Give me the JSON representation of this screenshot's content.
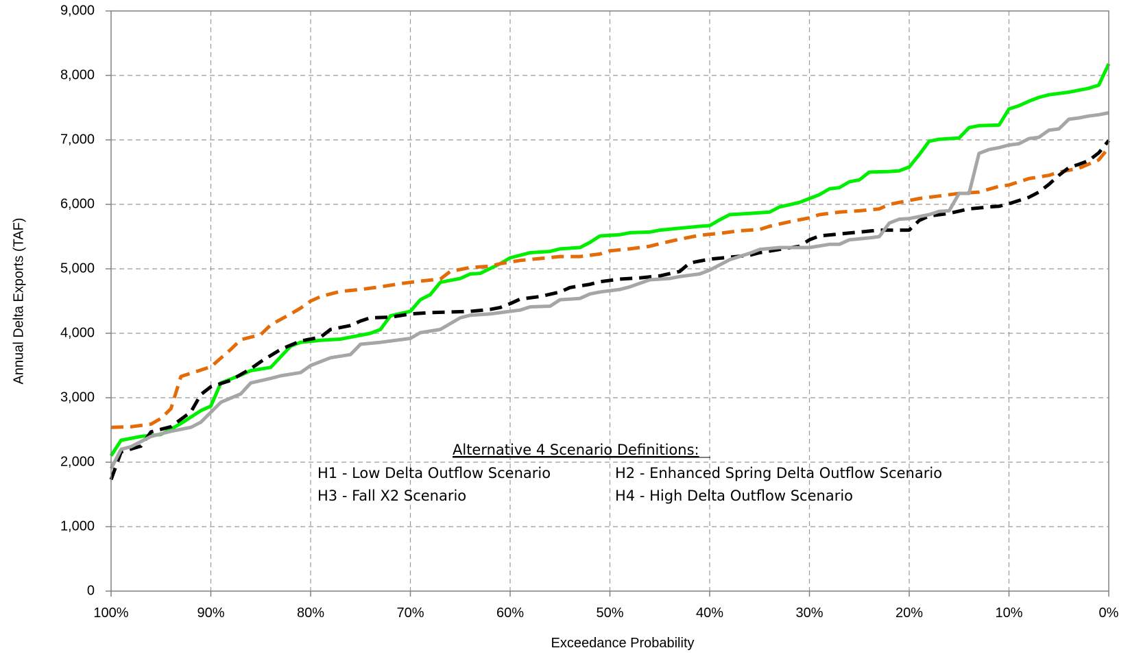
{
  "chart_data": {
    "type": "line",
    "title": "",
    "xlabel": "Exceedance Probability",
    "ylabel": "Annual Delta Exports (TAF)",
    "x_axis_reversed": true,
    "xlim": [
      100,
      0
    ],
    "ylim": [
      0,
      9000
    ],
    "x_ticks": [
      100,
      90,
      80,
      70,
      60,
      50,
      40,
      30,
      20,
      10,
      0
    ],
    "x_tick_labels": [
      "100%",
      "90%",
      "80%",
      "70%",
      "60%",
      "50%",
      "40%",
      "30%",
      "20%",
      "10%",
      "0%"
    ],
    "y_ticks": [
      0,
      1000,
      2000,
      3000,
      4000,
      5000,
      6000,
      7000,
      8000,
      9000
    ],
    "y_tick_labels": [
      "0",
      "1,000",
      "2,000",
      "3,000",
      "4,000",
      "5,000",
      "6,000",
      "7,000",
      "8,000",
      "9,000"
    ],
    "grid": true,
    "grid_style": "dashed",
    "annotation": {
      "title": "Alternative 4 Scenario Definitions:",
      "h1": "H1 - Low Delta Outflow Scenario",
      "h2": "H2 - Enhanced Spring Delta Outflow Scenario",
      "h3": "H3 - Fall X2 Scenario",
      "h4": "H4 - High Delta Outflow Scenario"
    },
    "series": [
      {
        "color": "#00ee00",
        "dash": "solid",
        "points": [
          [
            100,
            2100
          ],
          [
            99,
            2340
          ],
          [
            97,
            2400
          ],
          [
            95,
            2430
          ],
          [
            93,
            2600
          ],
          [
            91,
            2800
          ],
          [
            90,
            2870
          ],
          [
            89,
            3230
          ],
          [
            87,
            3350
          ],
          [
            86,
            3420
          ],
          [
            84,
            3470
          ],
          [
            82,
            3800
          ],
          [
            81,
            3860
          ],
          [
            79,
            3890
          ],
          [
            77,
            3910
          ],
          [
            74,
            4000
          ],
          [
            73,
            4060
          ],
          [
            72,
            4270
          ],
          [
            70,
            4340
          ],
          [
            69,
            4520
          ],
          [
            68,
            4600
          ],
          [
            67,
            4790
          ],
          [
            65,
            4850
          ],
          [
            64,
            4920
          ],
          [
            63,
            4930
          ],
          [
            61,
            5080
          ],
          [
            60,
            5170
          ],
          [
            58,
            5250
          ],
          [
            56,
            5270
          ],
          [
            55,
            5310
          ],
          [
            53,
            5330
          ],
          [
            52,
            5410
          ],
          [
            51,
            5510
          ],
          [
            49,
            5530
          ],
          [
            48,
            5560
          ],
          [
            46,
            5570
          ],
          [
            45,
            5600
          ],
          [
            43,
            5630
          ],
          [
            41,
            5660
          ],
          [
            40,
            5670
          ],
          [
            39,
            5760
          ],
          [
            38,
            5840
          ],
          [
            36,
            5860
          ],
          [
            34,
            5880
          ],
          [
            33,
            5960
          ],
          [
            31,
            6030
          ],
          [
            30,
            6090
          ],
          [
            29,
            6150
          ],
          [
            28,
            6240
          ],
          [
            27,
            6260
          ],
          [
            26,
            6350
          ],
          [
            25,
            6380
          ],
          [
            24,
            6500
          ],
          [
            22,
            6510
          ],
          [
            21,
            6520
          ],
          [
            20,
            6580
          ],
          [
            19,
            6770
          ],
          [
            18,
            6980
          ],
          [
            17,
            7010
          ],
          [
            15,
            7030
          ],
          [
            14,
            7190
          ],
          [
            13,
            7220
          ],
          [
            11,
            7230
          ],
          [
            10,
            7480
          ],
          [
            9,
            7530
          ],
          [
            8,
            7600
          ],
          [
            7,
            7660
          ],
          [
            6,
            7700
          ],
          [
            5,
            7720
          ],
          [
            4,
            7740
          ],
          [
            3,
            7770
          ],
          [
            2,
            7800
          ],
          [
            1,
            7850
          ],
          [
            0,
            8180
          ]
        ]
      },
      {
        "color": "#e36c09",
        "dash": "dashed",
        "points": [
          [
            100,
            2540
          ],
          [
            98,
            2550
          ],
          [
            96,
            2590
          ],
          [
            95,
            2680
          ],
          [
            94,
            2830
          ],
          [
            93,
            3330
          ],
          [
            92,
            3380
          ],
          [
            91,
            3430
          ],
          [
            90,
            3480
          ],
          [
            88,
            3750
          ],
          [
            87,
            3900
          ],
          [
            85,
            3980
          ],
          [
            84,
            4130
          ],
          [
            82,
            4300
          ],
          [
            81,
            4390
          ],
          [
            80,
            4500
          ],
          [
            79,
            4570
          ],
          [
            77,
            4650
          ],
          [
            75,
            4680
          ],
          [
            73,
            4720
          ],
          [
            71,
            4770
          ],
          [
            69,
            4810
          ],
          [
            67,
            4840
          ],
          [
            66,
            4960
          ],
          [
            64,
            5020
          ],
          [
            62,
            5040
          ],
          [
            61,
            5080
          ],
          [
            59,
            5130
          ],
          [
            57,
            5160
          ],
          [
            55,
            5190
          ],
          [
            53,
            5190
          ],
          [
            51,
            5230
          ],
          [
            50,
            5280
          ],
          [
            48,
            5310
          ],
          [
            46,
            5350
          ],
          [
            45,
            5390
          ],
          [
            43,
            5460
          ],
          [
            41,
            5520
          ],
          [
            39,
            5550
          ],
          [
            37,
            5590
          ],
          [
            35,
            5610
          ],
          [
            34,
            5660
          ],
          [
            32,
            5730
          ],
          [
            30,
            5790
          ],
          [
            29,
            5840
          ],
          [
            27,
            5880
          ],
          [
            25,
            5900
          ],
          [
            23,
            5930
          ],
          [
            22,
            6000
          ],
          [
            20,
            6060
          ],
          [
            19,
            6090
          ],
          [
            17,
            6130
          ],
          [
            15,
            6170
          ],
          [
            13,
            6190
          ],
          [
            11,
            6280
          ],
          [
            10,
            6300
          ],
          [
            8,
            6400
          ],
          [
            6,
            6450
          ],
          [
            5,
            6500
          ],
          [
            3,
            6560
          ],
          [
            1,
            6690
          ],
          [
            0,
            6880
          ]
        ]
      },
      {
        "color": "#000000",
        "dash": "dashed",
        "points": [
          [
            100,
            1730
          ],
          [
            99,
            2160
          ],
          [
            97,
            2250
          ],
          [
            96,
            2470
          ],
          [
            94,
            2550
          ],
          [
            92,
            2780
          ],
          [
            91,
            3050
          ],
          [
            90,
            3170
          ],
          [
            88,
            3270
          ],
          [
            86,
            3450
          ],
          [
            85,
            3560
          ],
          [
            83,
            3750
          ],
          [
            81,
            3880
          ],
          [
            79,
            3940
          ],
          [
            78,
            4060
          ],
          [
            76,
            4120
          ],
          [
            75,
            4190
          ],
          [
            74,
            4240
          ],
          [
            72,
            4250
          ],
          [
            70,
            4300
          ],
          [
            68,
            4320
          ],
          [
            66,
            4330
          ],
          [
            64,
            4340
          ],
          [
            62,
            4370
          ],
          [
            61,
            4400
          ],
          [
            60,
            4460
          ],
          [
            59,
            4530
          ],
          [
            57,
            4570
          ],
          [
            55,
            4640
          ],
          [
            54,
            4710
          ],
          [
            52,
            4760
          ],
          [
            51,
            4800
          ],
          [
            49,
            4840
          ],
          [
            47,
            4860
          ],
          [
            45,
            4890
          ],
          [
            43,
            4960
          ],
          [
            42,
            5090
          ],
          [
            40,
            5150
          ],
          [
            38,
            5180
          ],
          [
            36,
            5210
          ],
          [
            35,
            5250
          ],
          [
            33,
            5300
          ],
          [
            31,
            5350
          ],
          [
            30,
            5450
          ],
          [
            29,
            5510
          ],
          [
            27,
            5540
          ],
          [
            25,
            5570
          ],
          [
            23,
            5600
          ],
          [
            21,
            5600
          ],
          [
            20,
            5600
          ],
          [
            19,
            5750
          ],
          [
            18,
            5820
          ],
          [
            16,
            5860
          ],
          [
            14,
            5930
          ],
          [
            12,
            5960
          ],
          [
            11,
            5970
          ],
          [
            10,
            6010
          ],
          [
            8,
            6110
          ],
          [
            7,
            6190
          ],
          [
            6,
            6310
          ],
          [
            5,
            6450
          ],
          [
            4,
            6570
          ],
          [
            3,
            6620
          ],
          [
            2,
            6680
          ],
          [
            1,
            6800
          ],
          [
            0,
            6990
          ]
        ]
      },
      {
        "color": "#a6a6a6",
        "dash": "solid",
        "points": [
          [
            100,
            1900
          ],
          [
            99,
            2200
          ],
          [
            98,
            2240
          ],
          [
            96,
            2400
          ],
          [
            94,
            2480
          ],
          [
            92,
            2540
          ],
          [
            91,
            2620
          ],
          [
            89,
            2930
          ],
          [
            87,
            3060
          ],
          [
            86,
            3230
          ],
          [
            84,
            3300
          ],
          [
            83,
            3340
          ],
          [
            81,
            3390
          ],
          [
            80,
            3500
          ],
          [
            78,
            3620
          ],
          [
            76,
            3670
          ],
          [
            75,
            3830
          ],
          [
            73,
            3860
          ],
          [
            71,
            3900
          ],
          [
            70,
            3920
          ],
          [
            69,
            4010
          ],
          [
            67,
            4060
          ],
          [
            65,
            4240
          ],
          [
            64,
            4280
          ],
          [
            62,
            4300
          ],
          [
            61,
            4320
          ],
          [
            59,
            4360
          ],
          [
            58,
            4410
          ],
          [
            56,
            4420
          ],
          [
            55,
            4520
          ],
          [
            53,
            4540
          ],
          [
            52,
            4610
          ],
          [
            51,
            4640
          ],
          [
            49,
            4680
          ],
          [
            48,
            4720
          ],
          [
            46,
            4830
          ],
          [
            44,
            4850
          ],
          [
            43,
            4880
          ],
          [
            41,
            4920
          ],
          [
            40,
            4980
          ],
          [
            39,
            5060
          ],
          [
            38,
            5140
          ],
          [
            36,
            5240
          ],
          [
            35,
            5300
          ],
          [
            33,
            5330
          ],
          [
            32,
            5330
          ],
          [
            30,
            5330
          ],
          [
            28,
            5380
          ],
          [
            27,
            5380
          ],
          [
            26,
            5450
          ],
          [
            24,
            5480
          ],
          [
            23,
            5500
          ],
          [
            22,
            5710
          ],
          [
            21,
            5770
          ],
          [
            20,
            5780
          ],
          [
            18,
            5840
          ],
          [
            17,
            5890
          ],
          [
            16,
            5900
          ],
          [
            15,
            6170
          ],
          [
            14,
            6170
          ],
          [
            13,
            6790
          ],
          [
            12,
            6850
          ],
          [
            11,
            6880
          ],
          [
            10,
            6920
          ],
          [
            9,
            6940
          ],
          [
            8,
            7020
          ],
          [
            7,
            7040
          ],
          [
            6,
            7150
          ],
          [
            5,
            7170
          ],
          [
            4,
            7320
          ],
          [
            3,
            7340
          ],
          [
            2,
            7370
          ],
          [
            1,
            7390
          ],
          [
            0,
            7420
          ]
        ]
      }
    ]
  }
}
